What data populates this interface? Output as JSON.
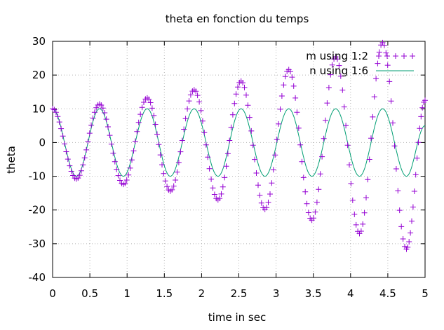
{
  "chart_data": {
    "type": "line",
    "title": "theta en fonction du temps",
    "xlabel": "time in sec",
    "ylabel": "theta",
    "xlim": [
      0,
      5
    ],
    "ylim": [
      -40,
      30
    ],
    "x_ticks": [
      0,
      0.5,
      1,
      1.5,
      2,
      2.5,
      3,
      3.5,
      4,
      4.5,
      5
    ],
    "x_tick_labels": [
      "0",
      "0.5",
      "1",
      "1.5",
      "2",
      "2.5",
      "3",
      "3.5",
      "4",
      "4.5",
      "5"
    ],
    "y_ticks": [
      -40,
      -30,
      -20,
      -10,
      0,
      10,
      20,
      30
    ],
    "y_tick_labels": [
      "-40",
      "-30",
      "-20",
      "-10",
      "0",
      "10",
      "20",
      "30"
    ],
    "grid": true,
    "legend_position": "top-right",
    "series": [
      {
        "name": "m using 1:2",
        "color": "#9400d3",
        "marker": "plus",
        "x": [
          0,
          0.32,
          0.63,
          0.95,
          1.27,
          1.58,
          1.9,
          2.22,
          2.53,
          2.85,
          3.17,
          3.48,
          3.8,
          4.12,
          4.43,
          4.75,
          5.0
        ],
        "y": [
          10,
          -10.8,
          11.4,
          -12.4,
          13.2,
          -14.4,
          15.6,
          -17.0,
          18.2,
          -19.8,
          21.6,
          -23.0,
          25.4,
          -27.0,
          29.6,
          -31.6,
          12.5
        ]
      },
      {
        "name": "n using 1:6",
        "color": "#009e73",
        "marker": "none",
        "x": [
          0,
          0.32,
          0.63,
          0.95,
          1.27,
          1.58,
          1.9,
          2.22,
          2.53,
          2.85,
          3.17,
          3.48,
          3.8,
          4.12,
          4.43,
          4.75,
          5.0
        ],
        "y": [
          10,
          -10,
          10,
          -10,
          10,
          -10,
          10,
          -10,
          10,
          -10,
          10,
          -10,
          10,
          -10,
          10,
          -10,
          5
        ]
      }
    ]
  }
}
